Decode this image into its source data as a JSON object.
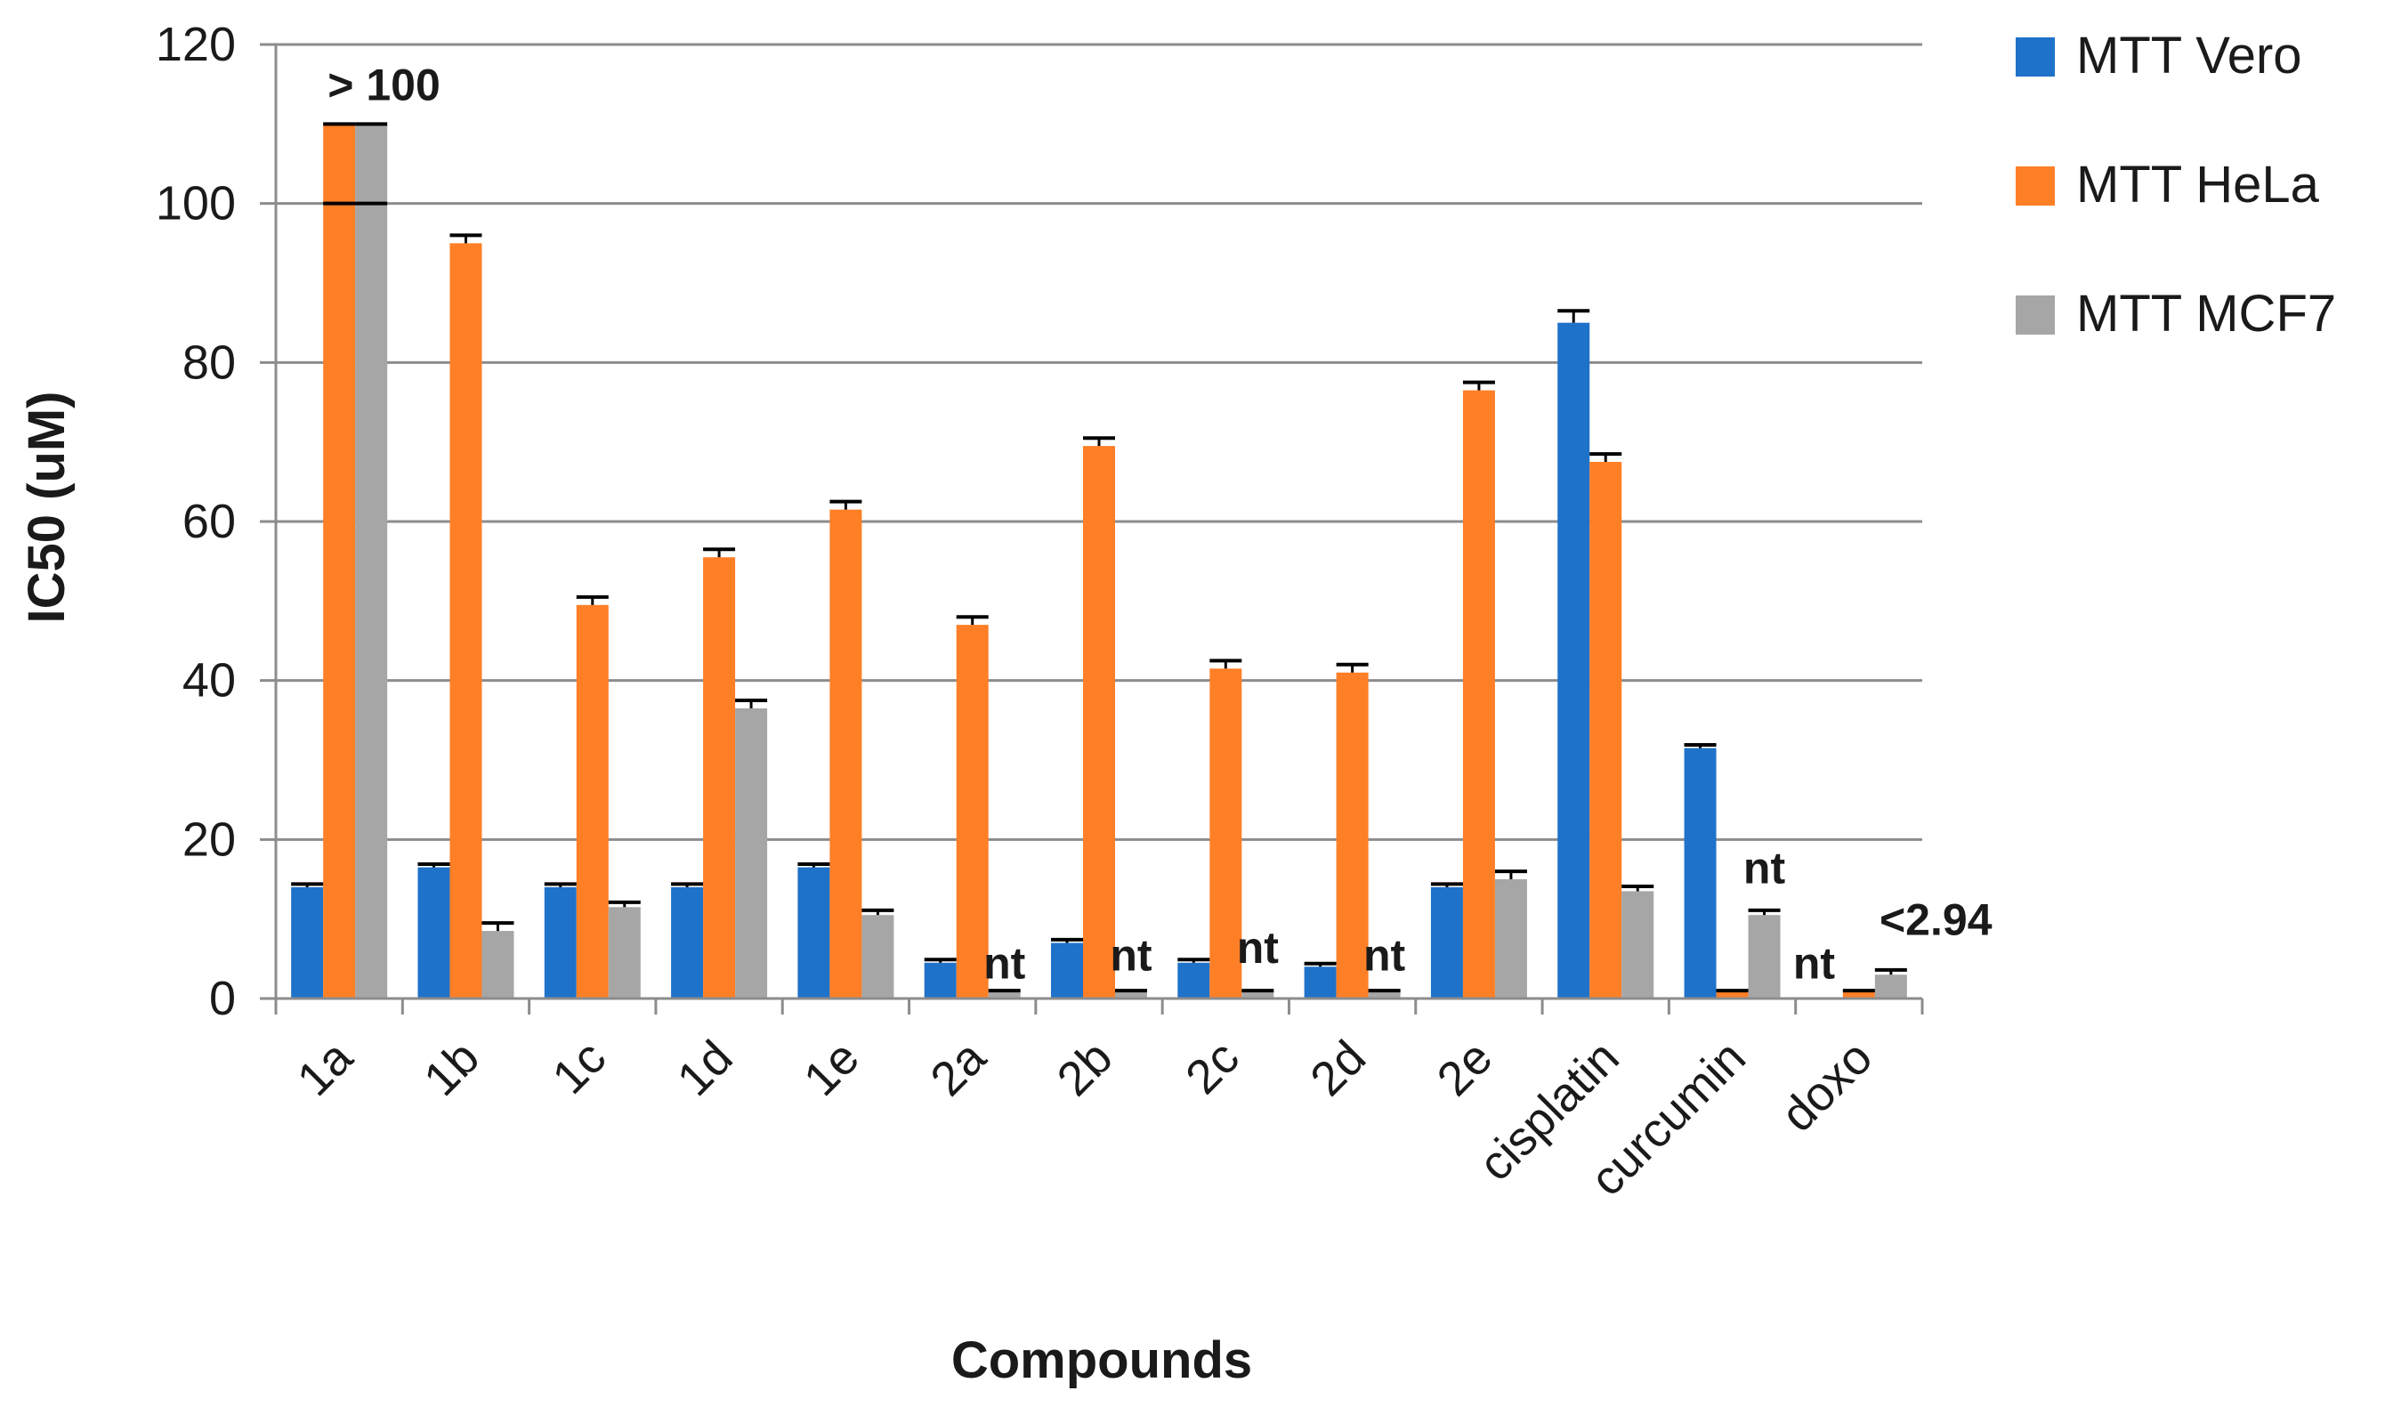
{
  "chart_data": {
    "type": "bar",
    "xlabel": "Compounds",
    "ylabel": "IC50 (uM)",
    "ylim": [
      0,
      120
    ],
    "yticks": [
      0,
      20,
      40,
      60,
      80,
      100,
      120
    ],
    "grid": true,
    "legend_position": "right",
    "categories": [
      "1a",
      "1b",
      "1c",
      "1d",
      "1e",
      "2a",
      "2b",
      "2c",
      "2d",
      "2e",
      "cisplatin",
      "curcumin",
      "doxo"
    ],
    "series": [
      {
        "name": "MTT Vero",
        "color": "#1f72c9",
        "values": [
          14,
          16.5,
          14,
          14,
          16.5,
          4.5,
          7,
          4.5,
          4,
          14,
          85,
          31.5,
          null
        ],
        "errors": [
          0.4,
          0.4,
          0.4,
          0.4,
          0.4,
          0.4,
          0.4,
          0.4,
          0.4,
          0.4,
          1.5,
          0.4,
          0
        ]
      },
      {
        "name": "MTT HeLa",
        "color": "#ff7f27",
        "values": [
          110,
          95,
          49.5,
          55.5,
          61.5,
          47,
          69.5,
          41.5,
          41,
          76.5,
          67.5,
          1,
          1
        ],
        "errors": [
          0,
          1,
          1,
          1,
          1,
          1,
          1,
          1,
          1,
          1,
          1,
          0,
          0
        ]
      },
      {
        "name": "MTT MCF7",
        "color": "#a6a6a6",
        "values": [
          110,
          8.5,
          11.5,
          36.5,
          10.5,
          1,
          1,
          1,
          1,
          15,
          13.5,
          10.5,
          3
        ],
        "errors": [
          0,
          1,
          0.6,
          1,
          0.6,
          0,
          0,
          0,
          0,
          1,
          0.6,
          0.6,
          0.6
        ]
      }
    ],
    "annotations": [
      {
        "text": "> 100",
        "category": "1a",
        "value": 113
      },
      {
        "text": "nt",
        "category": "2a",
        "value": 2.5
      },
      {
        "text": "nt",
        "category": "2b",
        "value": 3.5
      },
      {
        "text": "nt",
        "category": "2c",
        "value": 4.5
      },
      {
        "text": "nt",
        "category": "2d",
        "value": 3.5
      },
      {
        "text": "nt",
        "category": "curcumin",
        "value": 14.5
      },
      {
        "text": "nt",
        "category": "doxo",
        "value": 2.5
      },
      {
        "text": "<2.94",
        "category": "doxo",
        "value": 8
      }
    ]
  }
}
